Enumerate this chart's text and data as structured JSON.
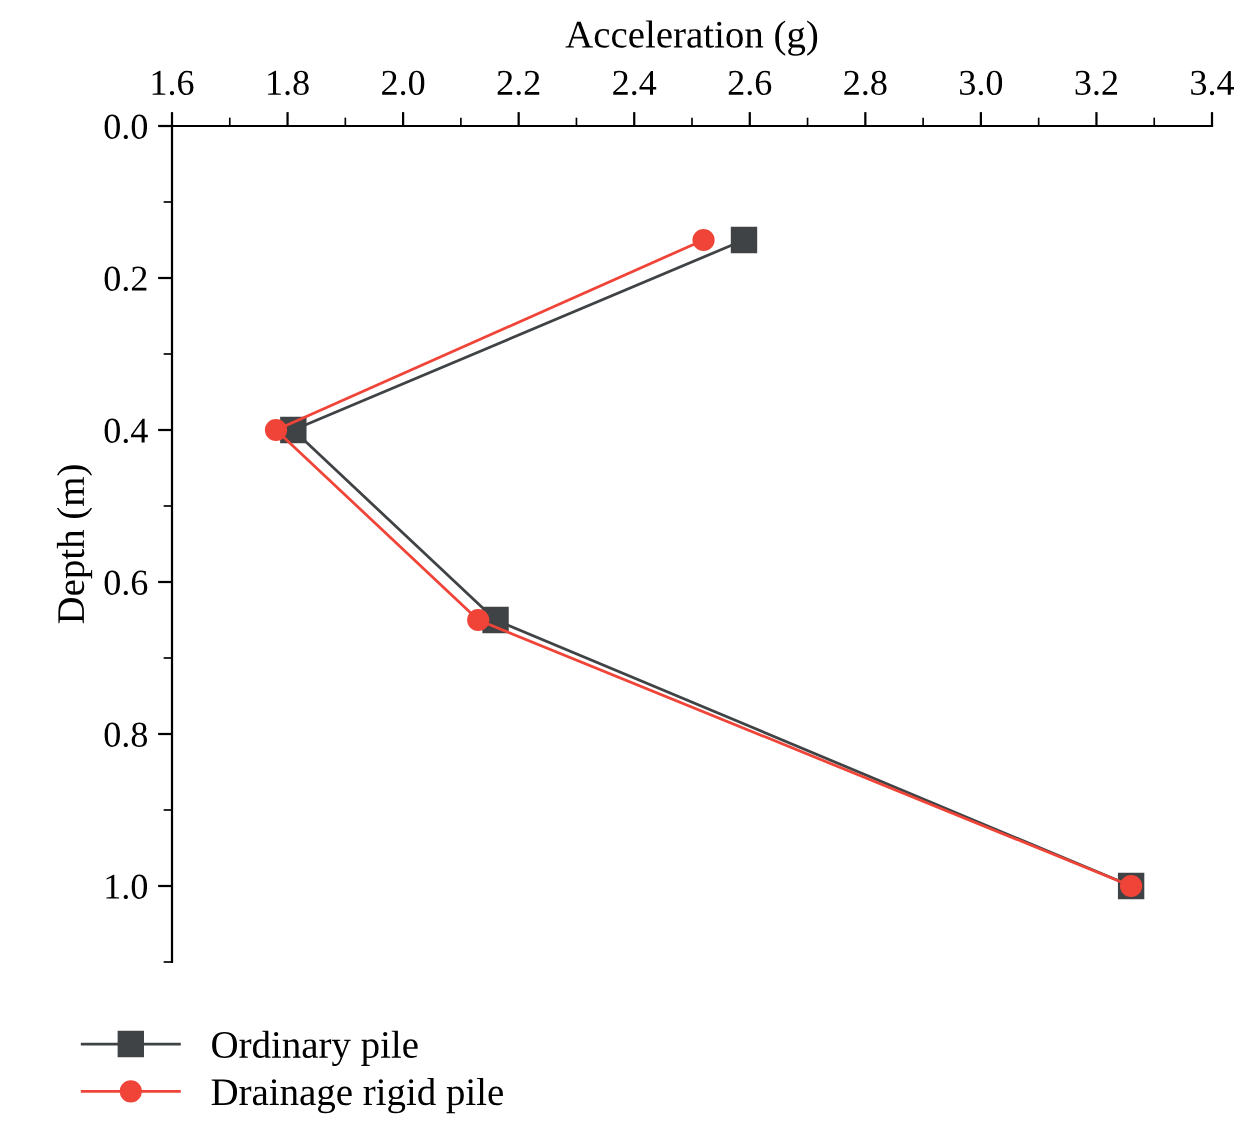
{
  "chart_data": {
    "type": "line",
    "xlabel": "Acceleration (g)",
    "ylabel": "Depth (m)",
    "xlim": [
      1.6,
      3.4
    ],
    "xticks": [
      1.6,
      1.8,
      {
        "value": 2,
        "label": "2.0"
      },
      2.2,
      2.4,
      2.6,
      2.8,
      {
        "value": 3,
        "label": "3.0"
      },
      3.2,
      3.4
    ],
    "ylim": [
      1.1,
      0
    ],
    "yticks": [
      {
        "value": 0,
        "label": "0.0"
      },
      0.2,
      0.4,
      0.6,
      0.8,
      {
        "value": 1,
        "label": "1.0"
      }
    ],
    "legend": "bottom",
    "series": [
      {
        "name": "Ordinary pile",
        "color": "#404345",
        "marker": "square",
        "x": [
          2.59,
          1.81,
          2.16,
          3.26
        ],
        "values": [
          0.15,
          0.4,
          0.65,
          1.0
        ]
      },
      {
        "name": "Drainage rigid pile",
        "color": "#f04438",
        "marker": "circle",
        "x": [
          2.52,
          1.78,
          2.13,
          3.26
        ],
        "values": [
          0.15,
          0.4,
          0.65,
          1.0
        ]
      }
    ]
  }
}
